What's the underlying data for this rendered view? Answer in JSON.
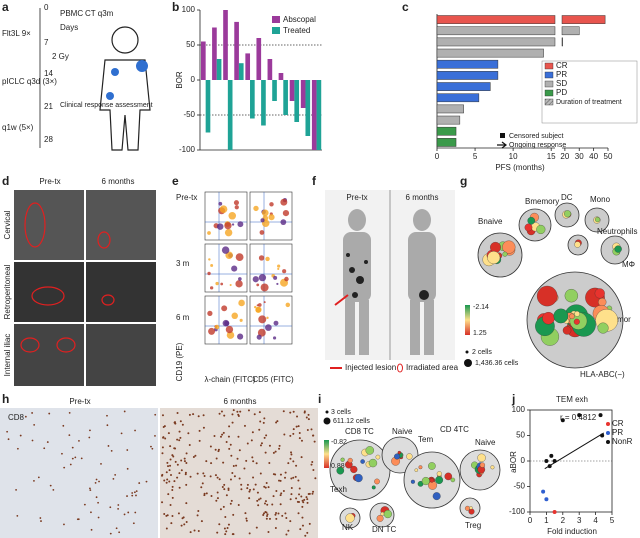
{
  "panel_a": {
    "letter": "a",
    "pbmc": "PBMC",
    "ct": "CT q3m",
    "flt3l": "Flt3L 9×",
    "days": "Days",
    "day_ticks": [
      "0",
      "7",
      "14",
      "21",
      "28"
    ],
    "gy": "2 Gy",
    "piclc": "pICLC q3d (3×)",
    "q1w": "q1w (5×)",
    "assessment": "Clinical response assessment"
  },
  "panel_b": {
    "letter": "b",
    "type": "bar",
    "ylabel": "BOR",
    "ylim": [
      -100,
      100
    ],
    "yticks": [
      -100,
      -50,
      0,
      50,
      100
    ],
    "series": [
      {
        "name": "Abscopal",
        "color": "#9b3a9b",
        "values": [
          55,
          75,
          100,
          83,
          38,
          60,
          30,
          10,
          -30,
          -40,
          -100
        ]
      },
      {
        "name": "Treated",
        "color": "#1fa396",
        "values": [
          -75,
          30,
          -100,
          24,
          -55,
          -65,
          -30,
          -50,
          -60,
          -80,
          -100
        ]
      }
    ]
  },
  "panel_c": {
    "letter": "c",
    "type": "barh",
    "xlabel": "PFS (months)",
    "xlim": [
      0,
      15.5
    ],
    "xticks": [
      0,
      5,
      10,
      15
    ],
    "x2lim": [
      18,
      50
    ],
    "x2ticks": [
      20,
      30,
      40,
      50
    ],
    "groups": [
      {
        "name": "CR",
        "color": "#e8554e"
      },
      {
        "name": "PR",
        "color": "#3a6fd8"
      },
      {
        "name": "SD",
        "color": "#b0b0b0"
      },
      {
        "name": "PD",
        "color": "#3a9a4a"
      }
    ],
    "bar_groups": [
      0,
      2,
      2,
      2,
      1,
      1,
      1,
      1,
      2,
      2,
      3,
      3
    ],
    "values": [
      48,
      30,
      18.5,
      14,
      8,
      8,
      7,
      5.5,
      3.5,
      3,
      2.5,
      2.5
    ],
    "legend_extra": [
      "Duration of treatment",
      "Censored subject",
      "Ongoing response"
    ]
  },
  "panel_d": {
    "letter": "d",
    "cols": [
      "Pre-tx",
      "6 months"
    ],
    "rows": [
      "Cervical",
      "Retroperitoneal",
      "Internal iliac"
    ]
  },
  "panel_e": {
    "letter": "e",
    "rows": [
      "Pre-tx",
      "3 m",
      "6 m"
    ],
    "ylabel": "CD19 (PE)",
    "xlabels": [
      "λ-chain (FITC)",
      "CD5 (FITC)"
    ]
  },
  "panel_f": {
    "letter": "f",
    "cols": [
      "Pre-tx",
      "6 months"
    ],
    "legend": [
      "Injected lesion",
      "Irradiated area"
    ]
  },
  "panel_g": {
    "letter": "g",
    "labels": [
      "Bnaive",
      "Bmemory",
      "DC",
      "Mono",
      "Neutrophils",
      "MΦ",
      "Tumor",
      "HLA-ABC(−)"
    ],
    "size_legend": [
      "2 cells",
      "1,436.36 cells"
    ],
    "color_scale": [
      "-2.14",
      "1.25"
    ]
  },
  "panel_h": {
    "letter": "h",
    "stain": "CD8",
    "cols": [
      "Pre-tx",
      "6 months"
    ]
  },
  "panel_i": {
    "letter": "i",
    "labels": [
      "CD8 TC",
      "Naive",
      "Tem",
      "CD 4TC",
      "Naive",
      "Texh",
      "NK",
      "DN TC",
      "Treg"
    ],
    "size_legend": [
      "3 cells",
      "611.12 cells"
    ],
    "color_scale": [
      "-0.82",
      "0.88"
    ]
  },
  "panel_j": {
    "letter": "j",
    "type": "scatter",
    "title": "TEM exh",
    "annotation": "r = 0.4812",
    "ylabel": "aBOR",
    "xlabel": "Fold induction",
    "xlim": [
      0,
      5
    ],
    "xticks": [
      0,
      1,
      2,
      3,
      4,
      5
    ],
    "ylim": [
      -100,
      100
    ],
    "yticks": [
      -100,
      -50,
      0,
      50,
      100
    ],
    "series": [
      {
        "name": "CR",
        "color": "#e8332e",
        "x": [
          1.5
        ],
        "values": [
          -100
        ]
      },
      {
        "name": "PR",
        "color": "#2f5fd0",
        "x": [
          0.8,
          1.0
        ],
        "values": [
          -60,
          -75
        ]
      },
      {
        "name": "NonR",
        "color": "#111111",
        "x": [
          1.0,
          1.2,
          1.3,
          1.5,
          2.0,
          3.0,
          4.3,
          4.4
        ],
        "values": [
          0,
          -10,
          10,
          0,
          80,
          90,
          90,
          50
        ]
      }
    ]
  }
}
